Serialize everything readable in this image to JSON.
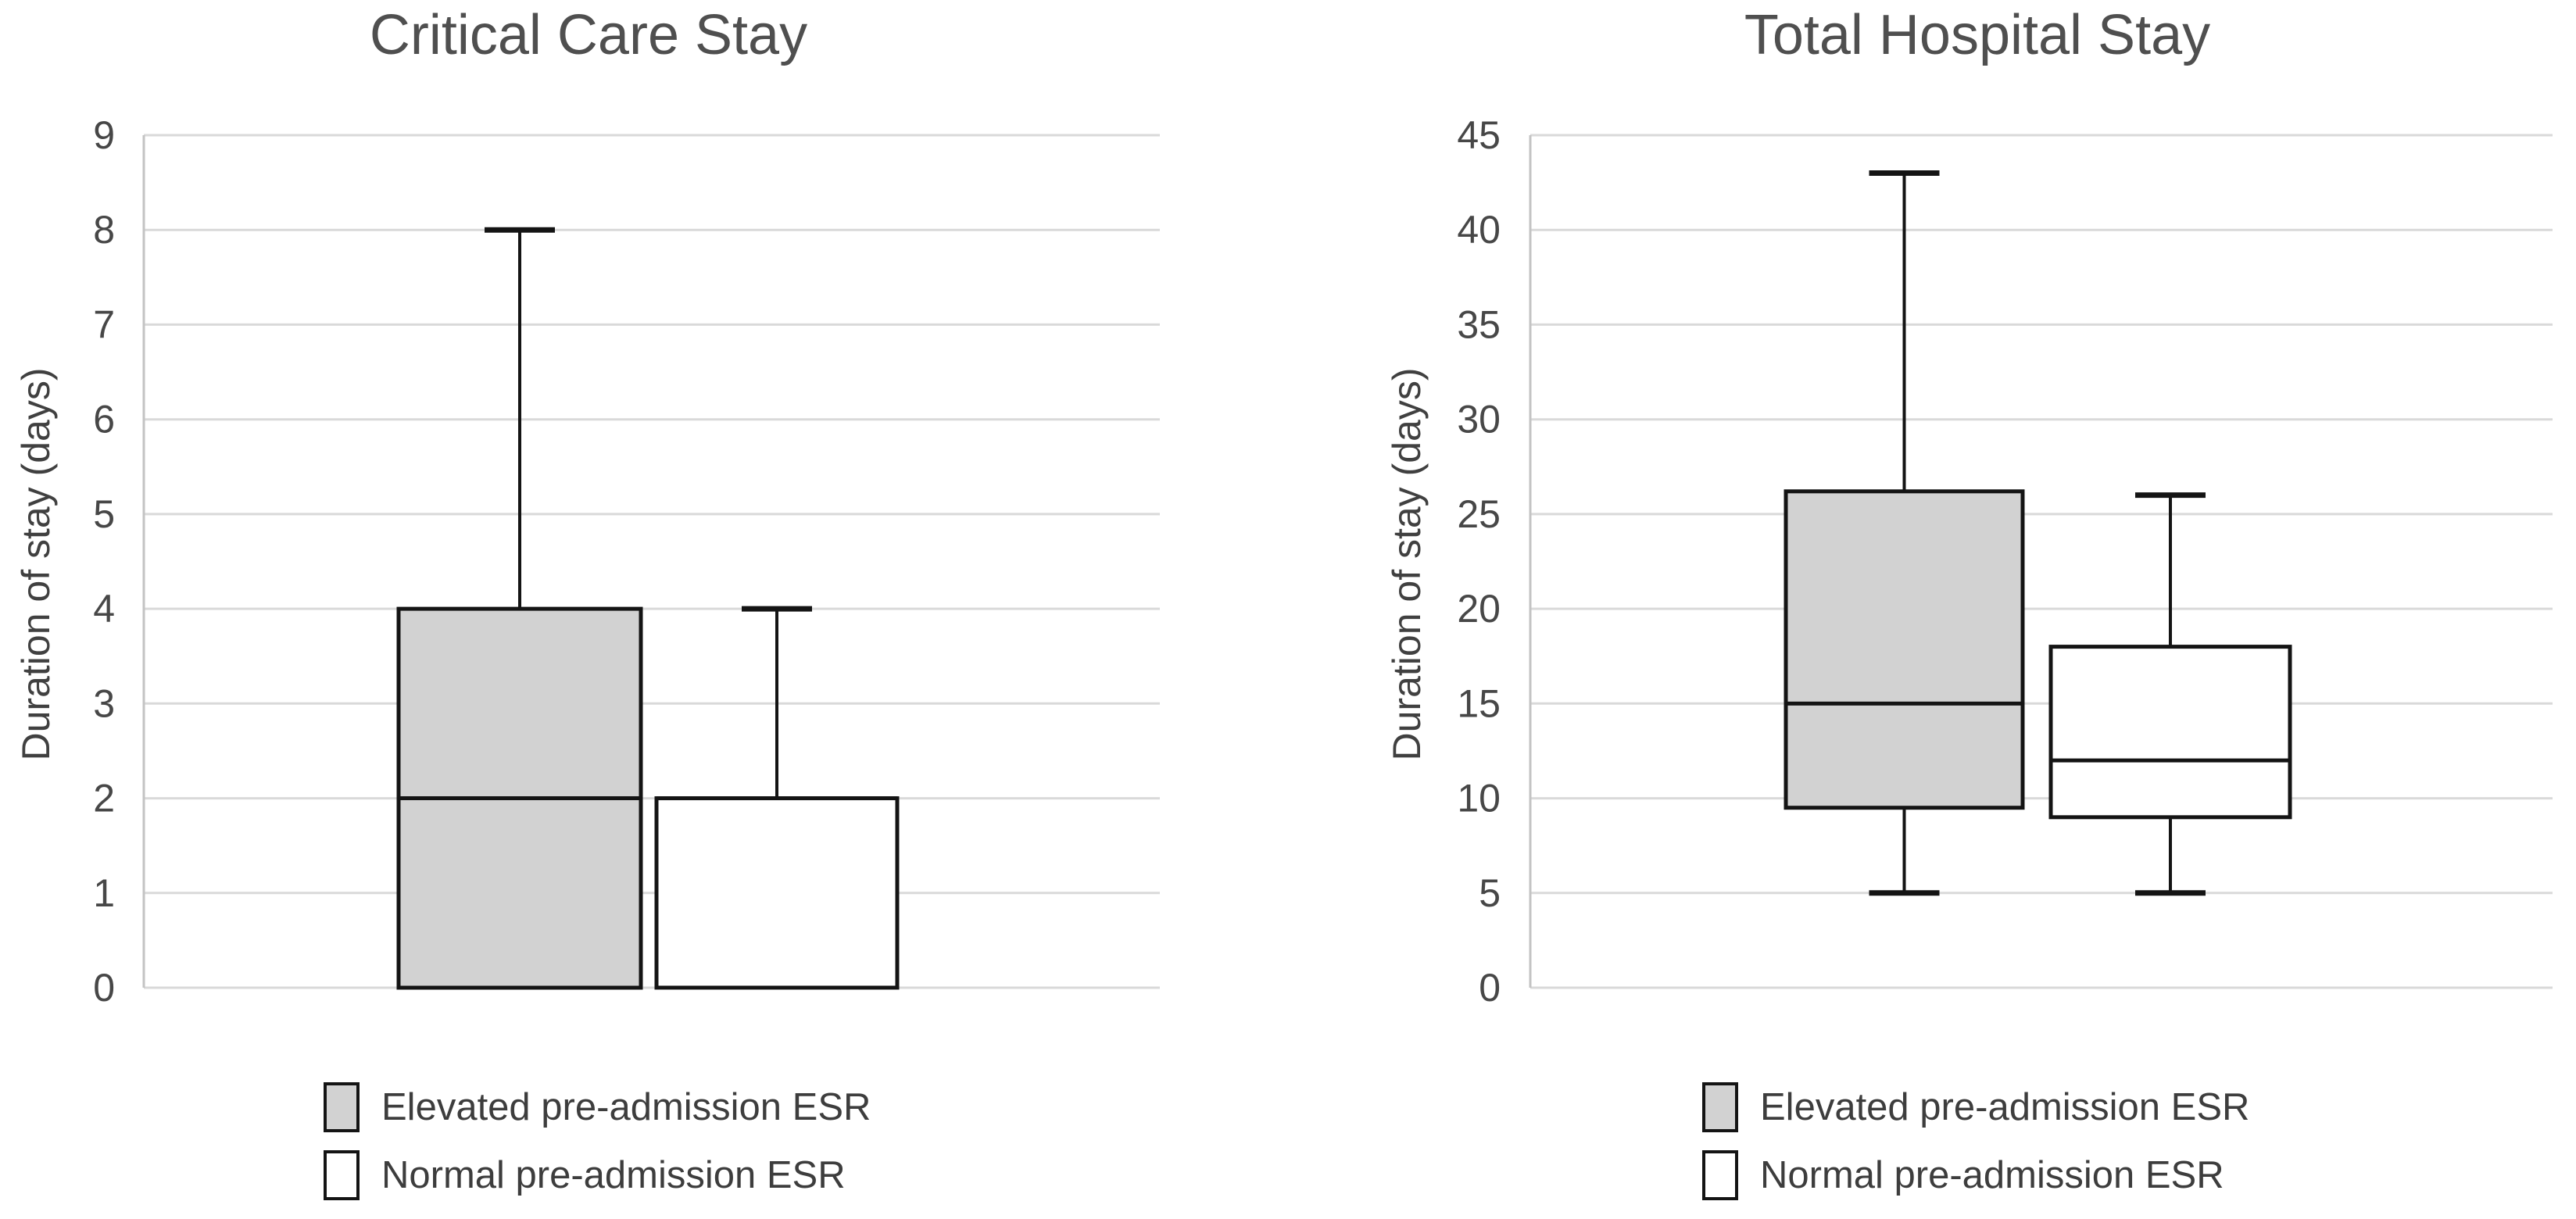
{
  "figure": {
    "background": "#ffffff",
    "panels": 2
  },
  "chart_data": [
    {
      "type": "boxplot",
      "title": "Critical Care Stay",
      "xlabel": "",
      "ylabel": "Duration of stay (days)",
      "ylim": [
        0,
        9
      ],
      "yticks": [
        0,
        1,
        2,
        3,
        4,
        5,
        6,
        7,
        8,
        9
      ],
      "grid": true,
      "grid_color": "#d9d9d9",
      "axis_color": "#c3c3c3",
      "box_border_color": "#141414",
      "legend_position": "bottom",
      "series": [
        {
          "name": "Elevated pre-admission ESR",
          "fill": "#d2d2d2",
          "min": 0,
          "q1": 0,
          "median": 2,
          "q3": 4,
          "max": 8
        },
        {
          "name": "Normal pre-admission ESR",
          "fill": "#ffffff",
          "min": 0,
          "q1": 0,
          "median": 2,
          "q3": 2,
          "max": 4
        }
      ]
    },
    {
      "type": "boxplot",
      "title": "Total Hospital Stay",
      "xlabel": "",
      "ylabel": "Duration of stay (days)",
      "ylim": [
        0,
        45
      ],
      "yticks": [
        0,
        5,
        10,
        15,
        20,
        25,
        30,
        35,
        40,
        45
      ],
      "grid": true,
      "grid_color": "#d9d9d9",
      "axis_color": "#c3c3c3",
      "box_border_color": "#141414",
      "legend_position": "bottom",
      "series": [
        {
          "name": "Elevated pre-admission ESR",
          "fill": "#d2d2d2",
          "min": 5,
          "q1": 9.5,
          "median": 15,
          "q3": 26.2,
          "max": 43
        },
        {
          "name": "Normal pre-admission ESR",
          "fill": "#ffffff",
          "min": 5,
          "q1": 9,
          "median": 12,
          "q3": 18,
          "max": 26
        }
      ]
    }
  ],
  "text_colors": {
    "title": "#4f4f4f",
    "tick_labels": "#474747",
    "axis_label": "#404040",
    "legend": "#3d3d3d"
  }
}
